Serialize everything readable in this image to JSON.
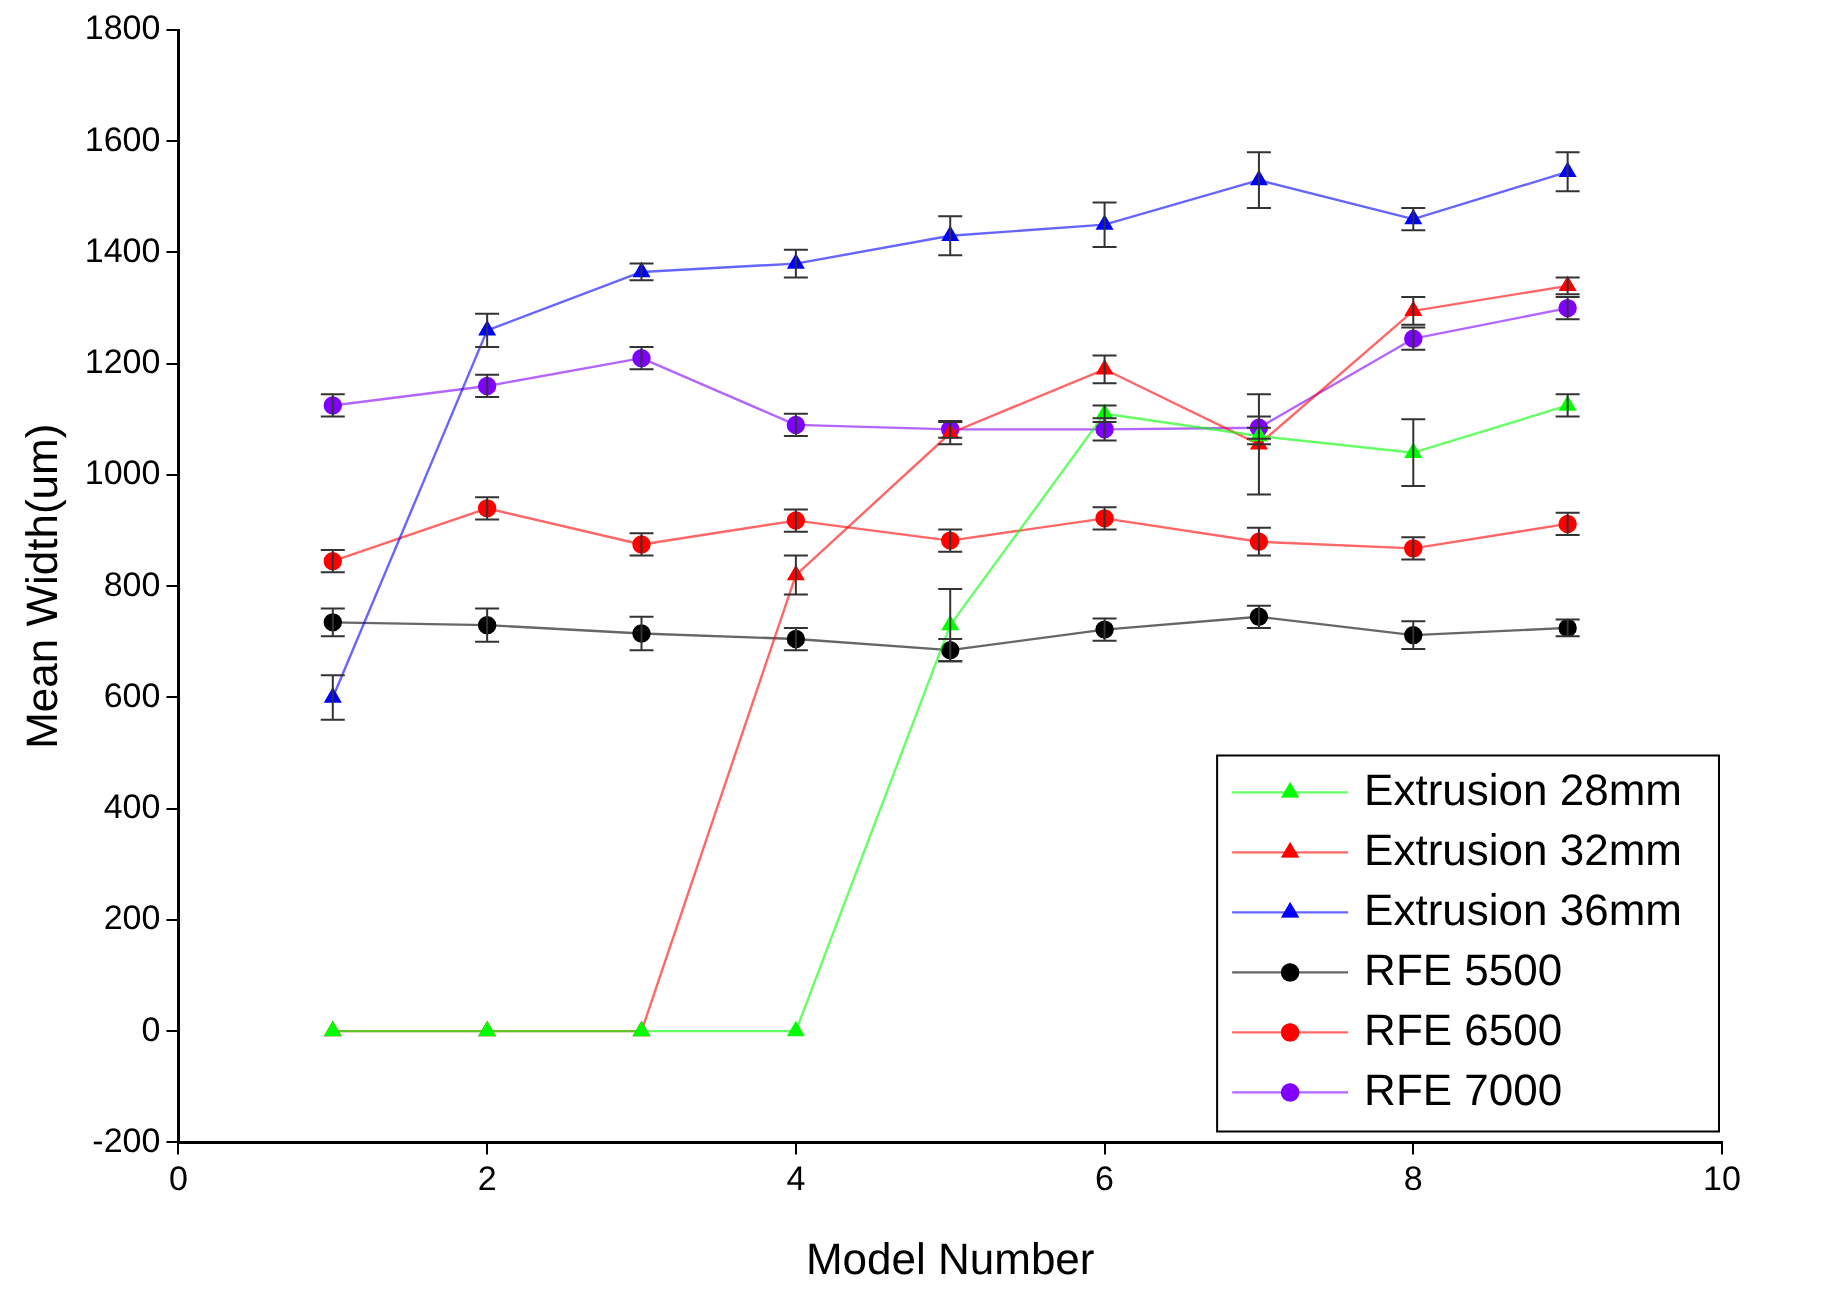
{
  "chart_data": {
    "type": "line",
    "xlabel": "Model Number",
    "ylabel": "Mean Width(um)",
    "x": [
      1,
      2,
      3,
      4,
      5,
      6,
      7,
      8,
      9
    ],
    "xlim": [
      0,
      10
    ],
    "xticks": [
      0,
      2,
      4,
      6,
      8,
      10
    ],
    "ylim": [
      -200,
      1800
    ],
    "yticks": [
      -200,
      0,
      200,
      400,
      600,
      800,
      1000,
      1200,
      1400,
      1600,
      1800
    ],
    "grid": false,
    "legend": "bottom right",
    "series": [
      {
        "name": "Extrusion 28mm",
        "color": "#00ff00",
        "marker": "triangle",
        "values": [
          0,
          0,
          0,
          0,
          730,
          1110,
          1070,
          1040,
          1125
        ],
        "errors": [
          null,
          null,
          null,
          null,
          65,
          15,
          15,
          60,
          20
        ]
      },
      {
        "name": "Extrusion 32mm",
        "color": "#ff0000",
        "marker": "triangle",
        "values": [
          0,
          0,
          0,
          820,
          1075,
          1190,
          1055,
          1295,
          1340
        ],
        "errors": [
          null,
          null,
          null,
          35,
          20,
          25,
          90,
          25,
          15
        ]
      },
      {
        "name": "Extrusion 36mm",
        "color": "#0000ff",
        "marker": "triangle",
        "values": [
          600,
          1260,
          1365,
          1380,
          1430,
          1450,
          1530,
          1460,
          1545
        ],
        "errors": [
          40,
          30,
          15,
          25,
          35,
          40,
          50,
          20,
          35
        ]
      },
      {
        "name": "RFE 5500",
        "color": "#000000",
        "marker": "circle",
        "values": [
          735,
          730,
          715,
          705,
          685,
          722,
          745,
          712,
          725
        ],
        "errors": [
          25,
          30,
          30,
          20,
          20,
          20,
          20,
          25,
          15
        ]
      },
      {
        "name": "RFE 6500",
        "color": "#ff0000",
        "marker": "circle",
        "values": [
          845,
          940,
          875,
          918,
          882,
          922,
          880,
          868,
          912
        ],
        "errors": [
          20,
          20,
          20,
          20,
          20,
          20,
          25,
          20,
          20
        ]
      },
      {
        "name": "RFE 7000",
        "color": "#8000ff",
        "marker": "circle",
        "values": [
          1125,
          1160,
          1210,
          1090,
          1082,
          1082,
          1085,
          1245,
          1300
        ],
        "errors": [
          20,
          20,
          20,
          20,
          15,
          20,
          20,
          20,
          20
        ]
      }
    ]
  }
}
